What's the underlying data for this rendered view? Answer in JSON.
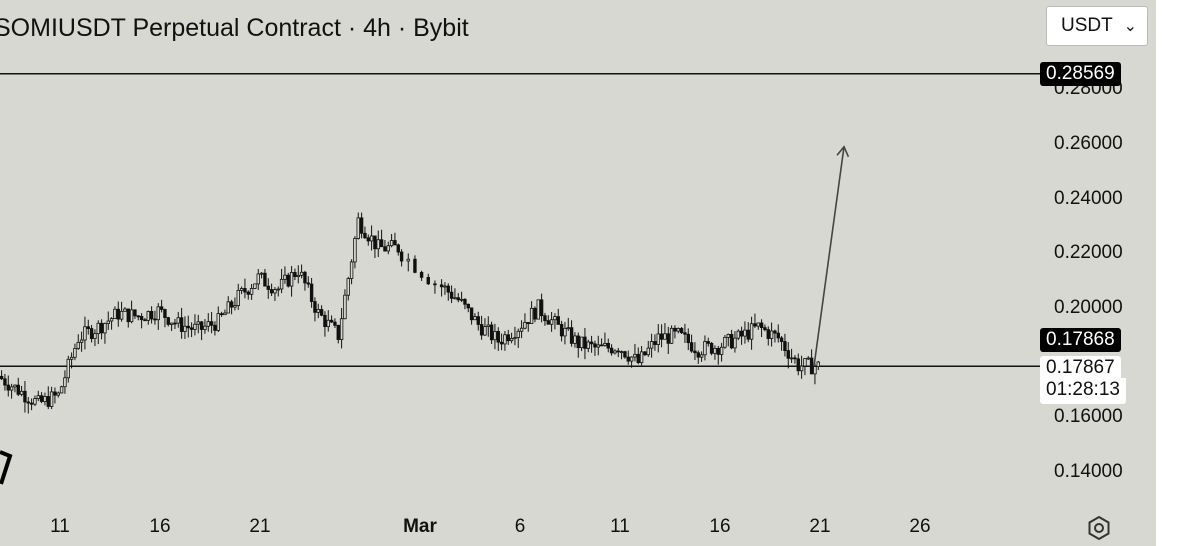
{
  "header": {
    "title": "SOMIUSDT Perpetual Contract · 4h · Bybit"
  },
  "currency_select": {
    "value": "USDT",
    "icon": "chevron-down-icon"
  },
  "price_tags": {
    "target": "0.28569",
    "last_price": "0.17868",
    "marked_price": "0.17867",
    "countdown": "01:28:13"
  },
  "settings": {
    "icon": "settings-gear-icon"
  },
  "colors": {
    "background": "#d8d8d3",
    "candle": "#111111",
    "tag_dark": "#000000",
    "arrow": "#444444"
  },
  "chart_data": {
    "type": "candlestick",
    "title": "SOMIUSDT Perpetual Contract · 4h · Bybit",
    "y_ticks": [
      "0.28000",
      "0.26000",
      "0.24000",
      "0.22000",
      "0.20000",
      "0.16000",
      "0.14000"
    ],
    "x_ticks": [
      "11",
      "16",
      "21",
      "Mar",
      "6",
      "11",
      "16",
      "21",
      "26"
    ],
    "ylim": [
      0.128,
      0.31
    ],
    "horizontal_lines": [
      0.28569,
      0.1787
    ],
    "projection_arrow": {
      "from": {
        "date": "Mar 20",
        "price": 0.1787
      },
      "to": {
        "date": "Mar 21",
        "price": 0.259
      }
    },
    "price_path": [
      {
        "date": "Feb 8",
        "close": 0.175
      },
      {
        "date": "Feb 9",
        "close": 0.17
      },
      {
        "date": "Feb 10",
        "close": 0.165
      },
      {
        "date": "Feb 11",
        "close": 0.168
      },
      {
        "date": "Feb 12",
        "close": 0.189
      },
      {
        "date": "Feb 13",
        "close": 0.193
      },
      {
        "date": "Feb 14",
        "close": 0.198
      },
      {
        "date": "Feb 15",
        "close": 0.197
      },
      {
        "date": "Feb 16",
        "close": 0.199
      },
      {
        "date": "Feb 17",
        "close": 0.194
      },
      {
        "date": "Feb 18",
        "close": 0.192
      },
      {
        "date": "Feb 19",
        "close": 0.195
      },
      {
        "date": "Feb 20",
        "close": 0.204
      },
      {
        "date": "Feb 21",
        "close": 0.211
      },
      {
        "date": "Feb 22",
        "close": 0.207
      },
      {
        "date": "Feb 23",
        "close": 0.214
      },
      {
        "date": "Feb 24",
        "close": 0.198
      },
      {
        "date": "Feb 25",
        "close": 0.19
      },
      {
        "date": "Feb 26",
        "close": 0.232
      },
      {
        "date": "Feb 27",
        "close": 0.222
      },
      {
        "date": "Feb 28",
        "close": 0.222
      },
      {
        "date": "Mar 1",
        "close": 0.209
      },
      {
        "date": "Mar 2",
        "close": 0.203
      },
      {
        "date": "Mar 3",
        "close": 0.194
      },
      {
        "date": "Mar 4",
        "close": 0.188
      },
      {
        "date": "Mar 5",
        "close": 0.193
      },
      {
        "date": "Mar 6",
        "close": 0.2
      },
      {
        "date": "Mar 7",
        "close": 0.193
      },
      {
        "date": "Mar 8",
        "close": 0.187
      },
      {
        "date": "Mar 9",
        "close": 0.185
      },
      {
        "date": "Mar 10",
        "close": 0.186
      },
      {
        "date": "Mar 11",
        "close": 0.18
      },
      {
        "date": "Mar 12",
        "close": 0.189
      },
      {
        "date": "Mar 13",
        "close": 0.19
      },
      {
        "date": "Mar 14",
        "close": 0.185
      },
      {
        "date": "Mar 15",
        "close": 0.186
      },
      {
        "date": "Mar 16",
        "close": 0.189
      },
      {
        "date": "Mar 17",
        "close": 0.193
      },
      {
        "date": "Mar 18",
        "close": 0.189
      },
      {
        "date": "Mar 19",
        "close": 0.179
      },
      {
        "date": "Mar 20",
        "close": 0.1787
      }
    ]
  }
}
